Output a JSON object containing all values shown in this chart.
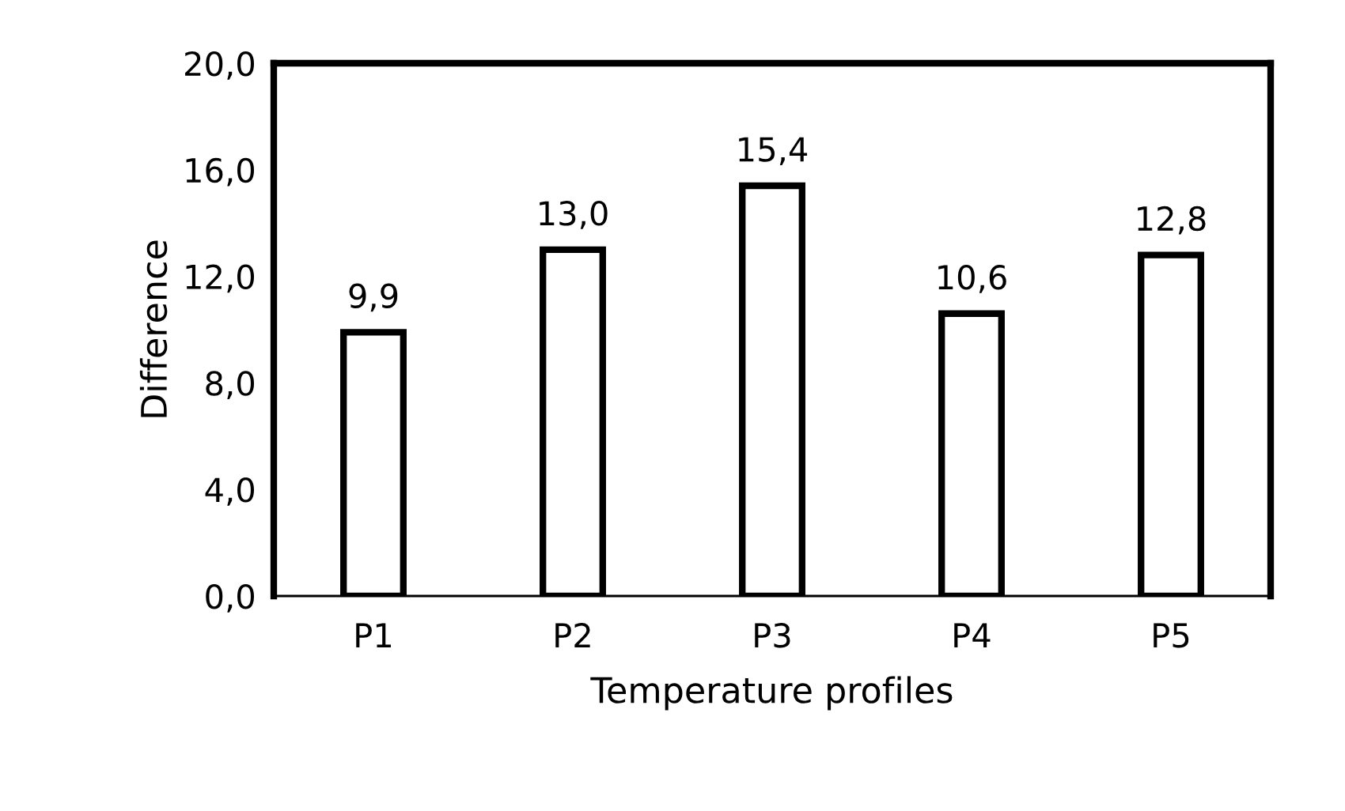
{
  "chart_data": {
    "type": "bar",
    "xlabel": "Temperature profiles",
    "ylabel": "Difference",
    "categories": [
      "P1",
      "P2",
      "P3",
      "P4",
      "P5"
    ],
    "values": [
      9.9,
      13.0,
      15.4,
      10.6,
      12.8
    ],
    "value_labels": [
      "9,9",
      "13,0",
      "15,4",
      "10,6",
      "12,8"
    ],
    "color": "#ffffff",
    "ylim": [
      0,
      20
    ],
    "yticks": [
      {
        "value": 0,
        "label": "0,0"
      },
      {
        "value": 4,
        "label": "4,0"
      },
      {
        "value": 8,
        "label": "8,0"
      },
      {
        "value": 12,
        "label": "12,0"
      },
      {
        "value": 16,
        "label": "16,0"
      },
      {
        "value": 20,
        "label": "20,0"
      }
    ],
    "grid": false,
    "legend": false
  }
}
